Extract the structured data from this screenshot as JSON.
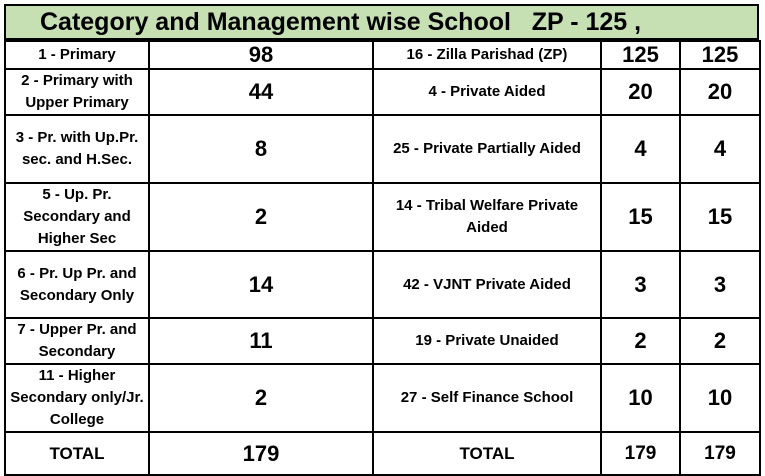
{
  "title": "Category and Management wise School   ZP - 125 ,",
  "rows": [
    {
      "category": "1 - Primary",
      "count": "98",
      "management": "16 - Zilla Parishad (ZP)",
      "v1": "125",
      "v2": "125"
    },
    {
      "category": "2 - Primary with Upper Primary",
      "count": "44",
      "management": "4 - Private Aided",
      "v1": "20",
      "v2": "20"
    },
    {
      "category": "3 - Pr. with Up.Pr. sec. and H.Sec.",
      "count": "8",
      "management": "25 - Private Partially Aided",
      "v1": "4",
      "v2": "4"
    },
    {
      "category": "5 - Up. Pr. Secondary and Higher Sec",
      "count": "2",
      "management": "14 - Tribal Welfare Private Aided",
      "v1": "15",
      "v2": "15"
    },
    {
      "category": "6 - Pr. Up Pr. and Secondary Only",
      "count": "14",
      "management": "42 - VJNT Private Aided",
      "v1": "3",
      "v2": "3"
    },
    {
      "category": "7 - Upper Pr. and Secondary",
      "count": "11",
      "management": "19 - Private Unaided",
      "v1": "2",
      "v2": "2"
    },
    {
      "category": "11 - Higher Secondary only/Jr. College",
      "count": "2",
      "management": "27 - Self Finance School",
      "v1": "10",
      "v2": "10"
    }
  ],
  "total": {
    "label_left": "TOTAL",
    "count": "179",
    "label_right": "TOTAL",
    "v1": "179",
    "v2": "179"
  }
}
